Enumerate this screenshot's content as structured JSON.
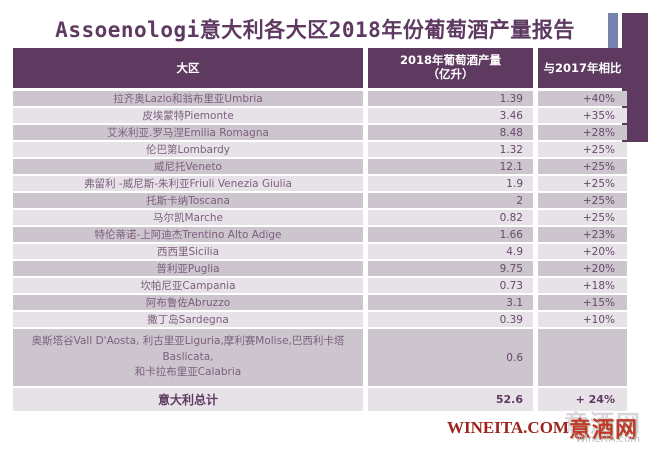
{
  "title": "Assoenologi意大利各大区2018年份葡萄酒产量报告",
  "colors": {
    "header_purple": "#5e3a61",
    "corner_bar_blue": "#7583ae",
    "row_dark": "#cdc5ce",
    "row_light": "#e6e2e7",
    "row_text_purple": "#7b5f7d",
    "brand_red": "#9b241c"
  },
  "table": {
    "headers": {
      "region": "大区",
      "production_line1": "2018年葡萄酒产量",
      "production_line2": "（亿升）",
      "change": "与2017年相比"
    },
    "rows": [
      {
        "region": "拉齐奥Lazio和翁布里亚Umbria",
        "production": "1.39",
        "change": "+40%"
      },
      {
        "region": "皮埃蒙特Piemonte",
        "production": "3.46",
        "change": "+35%"
      },
      {
        "region": "艾米利亚.罗马涅Emilia Romagna",
        "production": "8.48",
        "change": "+28%"
      },
      {
        "region": "伦巴第Lombardy",
        "production": "1.32",
        "change": "+25%"
      },
      {
        "region": "威尼托Veneto",
        "production": "12.1",
        "change": "+25%"
      },
      {
        "region": "弗留利 -威尼斯-朱利亚Friuli Venezia Giulia",
        "production": "1.9",
        "change": "+25%"
      },
      {
        "region": "托斯卡纳Toscana",
        "production": "2",
        "change": "+25%"
      },
      {
        "region": "马尔凯Marche",
        "production": "0.82",
        "change": "+25%"
      },
      {
        "region": "特伦蒂诺-上阿迪杰Trentino Alto Adige",
        "production": "1.66",
        "change": "+23%"
      },
      {
        "region": "西西里Sicilia",
        "production": "4.9",
        "change": "+20%"
      },
      {
        "region": "普利亚Puglia",
        "production": "9.75",
        "change": "+20%"
      },
      {
        "region": "坎帕尼亚Campania",
        "production": "0.73",
        "change": "+18%"
      },
      {
        "region": "阿布鲁佐Abruzzo",
        "production": "3.1",
        "change": "+15%"
      },
      {
        "region": "撒丁岛Sardegna",
        "production": "0.39",
        "change": "+10%"
      },
      {
        "region": "奥斯塔谷Vall D'Aosta, 利古里亚Liguria,摩利赛Molise,巴西利卡塔Baslicata,",
        "region_line2": "和卡拉布里亚Calabria",
        "production": "0.6",
        "change": ""
      }
    ],
    "total": {
      "region": "意大利总计",
      "production": "52.6",
      "change": "+ 24%"
    }
  },
  "footer": {
    "brand_en": "WINEITA.COM",
    "brand_cn": "意酒网",
    "watermark_cn": "意酒网",
    "watermark_sub": "WineITA.com"
  }
}
